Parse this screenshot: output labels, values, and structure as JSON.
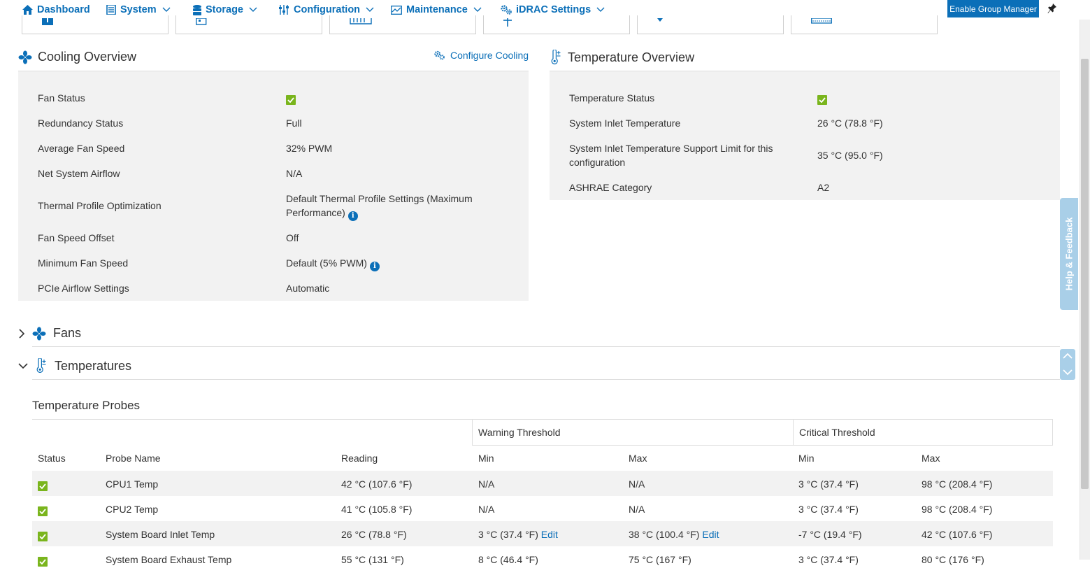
{
  "nav": {
    "items": [
      {
        "label": "Dashboard",
        "icon": "home-icon"
      },
      {
        "label": "System",
        "icon": "system-icon"
      },
      {
        "label": "Storage",
        "icon": "storage-icon"
      },
      {
        "label": "Configuration",
        "icon": "sliders-icon"
      },
      {
        "label": "Maintenance",
        "icon": "chart-icon"
      },
      {
        "label": "iDRAC Settings",
        "icon": "gears-icon"
      }
    ],
    "group_manager_label": "Enable Group Manager"
  },
  "cooling": {
    "title": "Cooling Overview",
    "configure_label": "Configure Cooling",
    "rows": [
      {
        "label": "Fan Status",
        "value": ""
      },
      {
        "label": "Redundancy Status",
        "value": "Full"
      },
      {
        "label": "Average Fan Speed",
        "value": "32% PWM"
      },
      {
        "label": "Net System Airflow",
        "value": "N/A"
      },
      {
        "label": "Thermal Profile Optimization",
        "value_line1": "Default Thermal Profile Settings (Maximum",
        "value_line2": "Performance)"
      },
      {
        "label": "Fan Speed Offset",
        "value": "Off"
      },
      {
        "label": "Minimum Fan Speed",
        "value": "Default (5% PWM)"
      },
      {
        "label": "PCIe Airflow Settings",
        "value": "Automatic"
      }
    ]
  },
  "temperature": {
    "title": "Temperature Overview",
    "rows": [
      {
        "label": "Temperature Status",
        "value": ""
      },
      {
        "label": "System Inlet Temperature",
        "value": "26 °C (78.8 °F)"
      },
      {
        "label_line1": "System Inlet Temperature Support Limit for this",
        "label_line2": "configuration",
        "value": "35 °C (95.0 °F)"
      },
      {
        "label": "ASHRAE Category",
        "value": "A2"
      }
    ]
  },
  "sections": {
    "fans_label": "Fans",
    "temperatures_label": "Temperatures"
  },
  "help_label": "Help & Feedback",
  "probes": {
    "title": "Temperature Probes",
    "group_headers": {
      "warning": "Warning Threshold",
      "critical": "Critical Threshold"
    },
    "columns": {
      "status": "Status",
      "name": "Probe Name",
      "reading": "Reading",
      "warn_min": "Min",
      "warn_max": "Max",
      "crit_min": "Min",
      "crit_max": "Max"
    },
    "edit_label": "Edit",
    "rows": [
      {
        "name": "CPU1 Temp",
        "reading": "42 °C (107.6 °F)",
        "warn_min": "N/A",
        "warn_max": "N/A",
        "crit_min": "3 °C (37.4 °F)",
        "crit_max": "98 °C (208.4 °F)"
      },
      {
        "name": "CPU2 Temp",
        "reading": "41 °C (105.8 °F)",
        "warn_min": "N/A",
        "warn_max": "N/A",
        "crit_min": "3 °C (37.4 °F)",
        "crit_max": "98 °C (208.4 °F)"
      },
      {
        "name": "System Board Inlet Temp",
        "reading": "26 °C (78.8 °F)",
        "warn_min": "3 °C (37.4 °F)",
        "warn_max": "38 °C (100.4 °F)",
        "crit_min": "-7 °C (19.4 °F)",
        "crit_max": "42 °C (107.6 °F)"
      },
      {
        "name": "System Board Exhaust Temp",
        "reading": "55 °C (131 °F)",
        "warn_min": "8 °C (46.4 °F)",
        "warn_max": "75 °C (167 °F)",
        "crit_min": "3 °C (37.4 °F)",
        "crit_max": "80 °C (176 °F)"
      }
    ]
  },
  "colors": {
    "accent": "#0b6fb8",
    "ok": "#7ab51d",
    "panel": "#f2f2f2",
    "help_tab": "#a9cfe8"
  }
}
